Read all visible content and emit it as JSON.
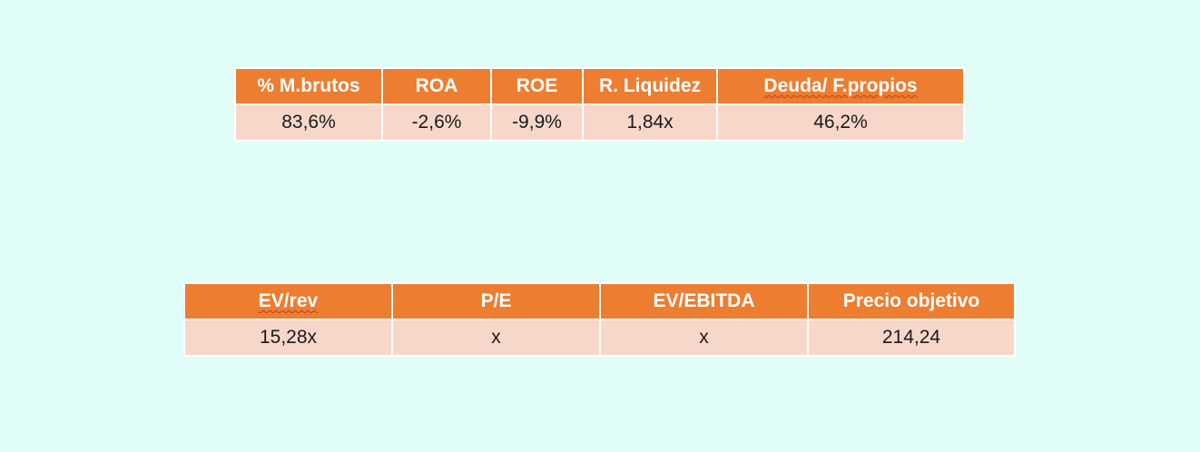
{
  "ratios_table": {
    "headers": [
      "% M.brutos",
      "ROA",
      "ROE",
      "R. Liquidez",
      "Deuda/ F.propios"
    ],
    "row": [
      "83,6%",
      "-2,6%",
      "-9,9%",
      "1,84x",
      "46,2%"
    ]
  },
  "valuation_table": {
    "headers": [
      "EV/rev",
      "P/E",
      "EV/EBITDA",
      "Precio objetivo"
    ],
    "row": [
      "15,28x",
      "x",
      "x",
      "214,24"
    ]
  },
  "colors": {
    "background": "#e1fdf8",
    "header_fill": "#ed7d31",
    "cell_fill": "#f8d7cb",
    "header_text": "#ffffff"
  }
}
